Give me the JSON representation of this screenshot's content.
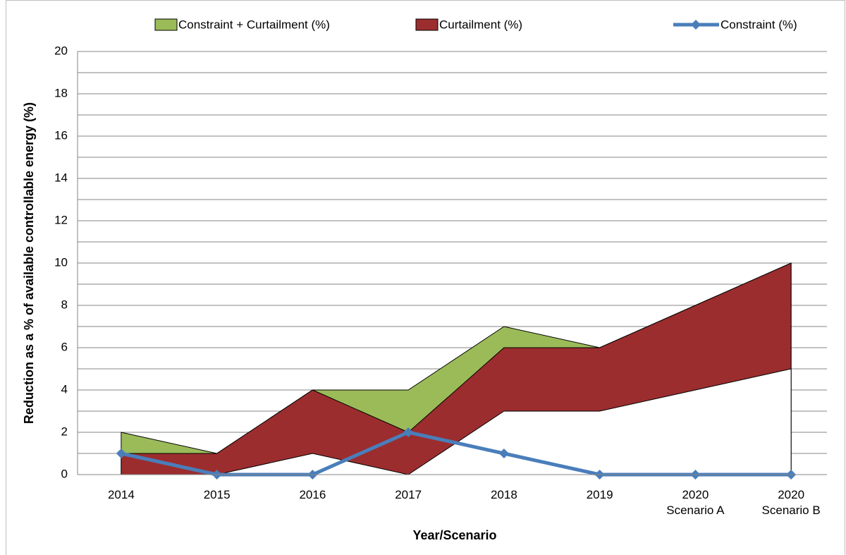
{
  "chart_data": {
    "type": "area",
    "categories": [
      "2014",
      "2015",
      "2016",
      "2017",
      "2018",
      "2019",
      "2020\nScenario A",
      "2020\nScenario B"
    ],
    "series": [
      {
        "name": "Constraint + Curtailment (%)",
        "type": "area",
        "color": "#9bbb59",
        "values": [
          2,
          1,
          4,
          4,
          7,
          6,
          8,
          10
        ]
      },
      {
        "name": "Curtailment (%)",
        "type": "area",
        "color": "#9b2d2e",
        "values": [
          1,
          1,
          4,
          2,
          6,
          6,
          8,
          10
        ]
      },
      {
        "type": "area",
        "color": "#ffffff",
        "values": [
          0,
          0,
          1,
          0,
          3,
          3,
          4,
          5
        ]
      },
      {
        "name": "Constraint (%)",
        "type": "line",
        "color": "#4a7ebb",
        "values": [
          1,
          0,
          0,
          2,
          1,
          0,
          0,
          0
        ]
      }
    ],
    "ylim": [
      0,
      20
    ],
    "yticks": [
      0,
      2,
      4,
      6,
      8,
      10,
      12,
      14,
      16,
      18,
      20
    ],
    "minor_yticks": [
      1,
      3,
      5,
      7,
      9,
      11,
      13,
      15,
      17,
      19
    ],
    "grid": true,
    "legend": "top",
    "xlabel": "Year/Scenario",
    "ylabel": "Reduction as a % of available controllable energy (%)"
  }
}
